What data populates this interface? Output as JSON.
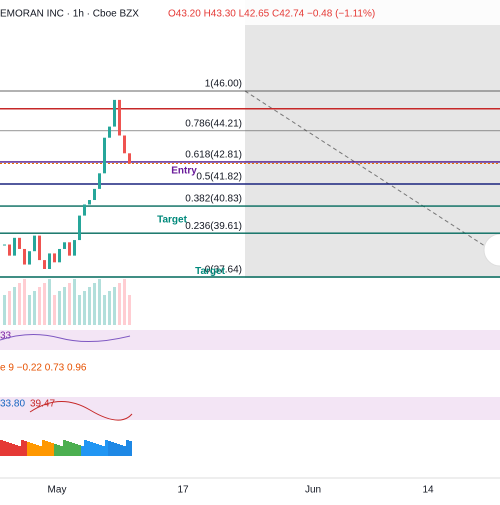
{
  "header": {
    "symbol": "EMORAN INC · 1h · Cboe BZX",
    "ohlc": "O43.20 H43.30 L42.65 C42.74 −0.48 (−1.11%)"
  },
  "chart": {
    "fib_levels": [
      {
        "value": 46.0,
        "label": "1(46.00)"
      },
      {
        "value": 44.21,
        "label": "0.786(44.21)"
      },
      {
        "value": 42.81,
        "label": "0.618(42.81)"
      },
      {
        "value": 41.82,
        "label": "0.5(41.82)"
      },
      {
        "value": 40.83,
        "label": "0.382(40.83)"
      },
      {
        "value": 39.61,
        "label": "0.236(39.61)"
      },
      {
        "value": 37.64,
        "label": "0(37.64)"
      }
    ],
    "stop_level": 45.2,
    "last_price": 42.74,
    "annotations": [
      {
        "text": "Entry",
        "value": 42.4
      },
      {
        "text": "Target",
        "value": 40.2
      },
      {
        "text": "Target",
        "value": 37.9
      }
    ],
    "closes": [
      39.1,
      38.6,
      39.4,
      38.9,
      38.2,
      38.8,
      39.5,
      38.4,
      38.0,
      38.7,
      38.3,
      38.9,
      39.2,
      38.6,
      39.3,
      40.4,
      40.9,
      41.1,
      41.6,
      42.3,
      43.9,
      44.4,
      45.6,
      44.0,
      43.2,
      42.74
    ]
  },
  "indicators": {
    "rsi": "33",
    "macd": "e 9  −0.22  0.73  0.96",
    "stoch_a": "33.80",
    "stoch_b": "39.47"
  },
  "x_axis": [
    "May",
    "17",
    "Jun",
    "14"
  ]
}
